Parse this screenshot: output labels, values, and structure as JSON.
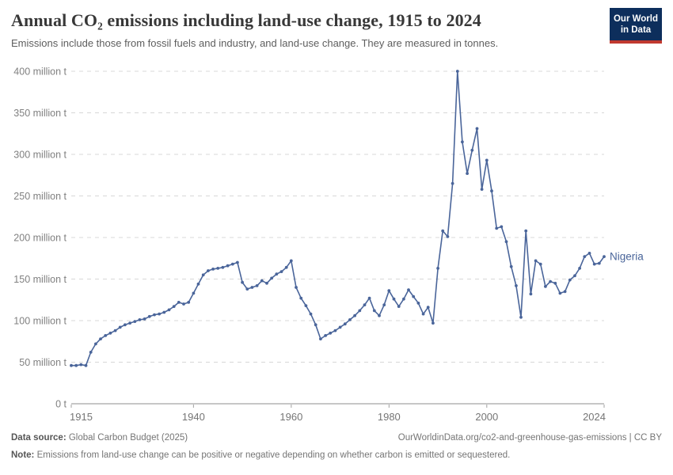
{
  "header": {
    "title": "Annual CO₂ emissions including land-use change, 1915 to 2024",
    "subtitle": "Emissions include those from fossil fuels and industry, and land-use change. They are measured in tonnes."
  },
  "logo": {
    "line1": "Our World",
    "line2": "in Data",
    "bg_color": "#0d2e5c",
    "bar_color": "#c0392f"
  },
  "chart_data": {
    "type": "line",
    "title": "Annual CO₂ emissions including land-use change, 1915 to 2024",
    "entity": "Nigeria",
    "series_end_label": "Nigeria",
    "line_color": "#4a659a",
    "grid": true,
    "legend_position": "end-of-line",
    "x_axis": {
      "range": [
        1915,
        2024
      ],
      "ticks": [
        1915,
        1940,
        1960,
        1980,
        2000,
        2024
      ],
      "tick_labels": [
        "1915",
        "1940",
        "1960",
        "1980",
        "2000",
        "2024"
      ]
    },
    "y_axis": {
      "range": [
        0,
        400
      ],
      "unit": "million t",
      "ticks": [
        0,
        50,
        100,
        150,
        200,
        250,
        300,
        350,
        400
      ],
      "tick_labels": [
        "0 t",
        "50 million t",
        "100 million t",
        "150 million t",
        "200 million t",
        "250 million t",
        "300 million t",
        "350 million t",
        "400 million t"
      ]
    },
    "year_start": 1915,
    "values_million_tonnes": [
      46,
      46,
      47,
      46,
      62,
      72,
      78,
      82,
      85,
      88,
      92,
      95,
      97,
      99,
      101,
      102,
      105,
      107,
      108,
      110,
      113,
      117,
      122,
      120,
      122,
      133,
      144,
      155,
      160,
      162,
      163,
      164,
      166,
      168,
      170,
      146,
      138,
      140,
      142,
      148,
      145,
      151,
      156,
      159,
      164,
      172,
      140,
      127,
      118,
      108,
      95,
      78,
      82,
      85,
      88,
      92,
      96,
      101,
      106,
      112,
      119,
      127,
      112,
      106,
      119,
      136,
      126,
      117,
      126,
      137,
      129,
      121,
      108,
      116,
      97,
      163,
      208,
      201,
      265,
      400,
      315,
      277,
      305,
      331,
      258,
      293,
      256,
      211,
      213,
      195,
      165,
      142,
      104,
      208,
      132,
      172,
      168,
      141,
      147,
      145,
      133,
      135,
      149,
      154,
      163,
      177,
      181,
      168,
      169,
      177
    ]
  },
  "footer": {
    "source_label": "Data source:",
    "source": " Global Carbon Budget (2025)",
    "link": "OurWorldinData.org/co2-and-greenhouse-gas-emissions | CC BY",
    "note_label": "Note:",
    "note": " Emissions from land-use change can be positive or negative depending on whether carbon is emitted or sequestered."
  }
}
